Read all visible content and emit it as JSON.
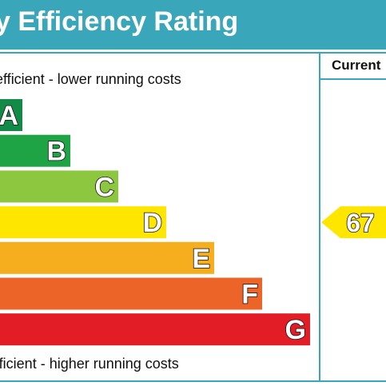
{
  "header": {
    "title": "y Efficiency Rating"
  },
  "columns": {
    "current_label": "Current"
  },
  "captions": {
    "top": "efficient - lower running costs",
    "bottom": "fficient - higher running costs"
  },
  "colors": {
    "header_bg": "#3aa6b9",
    "A": "#138a48",
    "B": "#1ea444",
    "C": "#8dc63f",
    "D": "#ffe600",
    "E": "#f7ae1e",
    "F": "#ec6428",
    "G": "#e31d26"
  },
  "chart_data": {
    "type": "bar",
    "categories": [
      "A",
      "B",
      "C",
      "D",
      "E",
      "F",
      "G"
    ],
    "current_rating": {
      "value": 67,
      "band": "D"
    }
  }
}
